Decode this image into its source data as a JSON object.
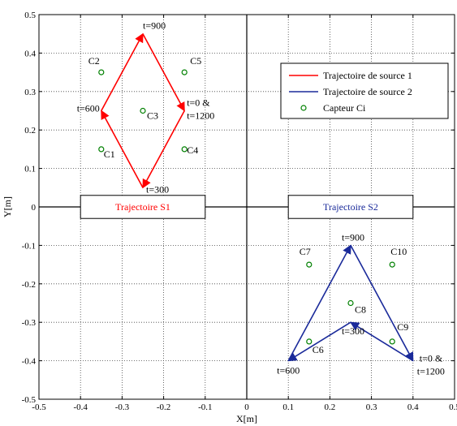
{
  "chart_data": {
    "type": "line",
    "xlabel": "X[m]",
    "ylabel": "Y[m]",
    "xlim": [
      -0.5,
      0.5
    ],
    "ylim": [
      -0.5,
      0.5
    ],
    "xticks": [
      -0.5,
      -0.4,
      -0.3,
      -0.2,
      -0.1,
      0,
      0.1,
      0.2,
      0.3,
      0.4,
      0.5
    ],
    "yticks": [
      -0.5,
      -0.4,
      -0.3,
      -0.2,
      -0.1,
      0,
      0.1,
      0.2,
      0.3,
      0.4,
      0.5
    ],
    "xtick_labels": [
      "-0.5",
      "-0.4",
      "-0.3",
      "-0.2",
      "-0.1",
      "0",
      "0.1",
      "0.2",
      "0.3",
      "0.4",
      "0.5"
    ],
    "ytick_labels": [
      "-0.5",
      "-0.4",
      "-0.3",
      "-0.2",
      "-0.1",
      "0",
      "0.1",
      "0.2",
      "0.3",
      "0.4",
      "0.5"
    ],
    "grid": true,
    "axis_lines": {
      "x": 0,
      "y": 0
    },
    "legend_position": "upper-right",
    "legend": [
      {
        "label": "Trajectoire de source 1",
        "color": "#ff0000",
        "marker": "line"
      },
      {
        "label": "Trajectoire de source 2",
        "color": "#1a2a9a",
        "marker": "line"
      },
      {
        "label": "Capteur Ci",
        "color": "#008000",
        "marker": "circle"
      }
    ],
    "series": [
      {
        "name": "Trajectoire de source 1",
        "color": "#ff0000",
        "x": [
          -0.15,
          -0.25,
          -0.35,
          -0.25,
          -0.15
        ],
        "y": [
          0.25,
          0.05,
          0.25,
          0.45,
          0.25
        ]
      },
      {
        "name": "Trajectoire de source 2",
        "color": "#1a2a9a",
        "x": [
          0.4,
          0.25,
          0.1,
          0.25,
          0.4
        ],
        "y": [
          -0.4,
          -0.3,
          -0.4,
          -0.1,
          -0.4
        ]
      }
    ],
    "sensors": {
      "name": "Capteur Ci",
      "color": "#008000",
      "points": [
        {
          "label": "C1",
          "x": -0.35,
          "y": 0.15
        },
        {
          "label": "C2",
          "x": -0.35,
          "y": 0.35
        },
        {
          "label": "C3",
          "x": -0.25,
          "y": 0.25
        },
        {
          "label": "C4",
          "x": -0.15,
          "y": 0.15
        },
        {
          "label": "C5",
          "x": -0.15,
          "y": 0.35
        },
        {
          "label": "C6",
          "x": 0.15,
          "y": -0.35
        },
        {
          "label": "C7",
          "x": 0.15,
          "y": -0.15
        },
        {
          "label": "C8",
          "x": 0.25,
          "y": -0.25
        },
        {
          "label": "C9",
          "x": 0.35,
          "y": -0.35
        },
        {
          "label": "C10",
          "x": 0.35,
          "y": -0.15
        }
      ]
    },
    "annotations": [
      {
        "text": "t=900",
        "x": -0.25,
        "y": 0.45,
        "color": "#000000"
      },
      {
        "text": "t=600",
        "x": -0.35,
        "y": 0.25,
        "color": "#000000"
      },
      {
        "text": "t=0 &",
        "x": -0.15,
        "y": 0.25,
        "color": "#000000"
      },
      {
        "text": "t=1200",
        "x": -0.15,
        "y": 0.25,
        "color": "#000000"
      },
      {
        "text": "t=300",
        "x": -0.25,
        "y": 0.05,
        "color": "#000000"
      },
      {
        "text": "t=900",
        "x": 0.25,
        "y": -0.1,
        "color": "#000000"
      },
      {
        "text": "t=300",
        "x": 0.25,
        "y": -0.3,
        "color": "#000000"
      },
      {
        "text": "t=600",
        "x": 0.1,
        "y": -0.4,
        "color": "#000000"
      },
      {
        "text": "t=0 &",
        "x": 0.4,
        "y": -0.4,
        "color": "#000000"
      },
      {
        "text": "t=1200",
        "x": 0.4,
        "y": -0.4,
        "color": "#000000"
      }
    ],
    "boxes": [
      {
        "text": "Trajectoire S1",
        "color": "#ff0000",
        "x": [
          -0.4,
          -0.1
        ],
        "y": [
          -0.03,
          0.03
        ]
      },
      {
        "text": "Trajectoire S2",
        "color": "#1a2a9a",
        "x": [
          0.1,
          0.4
        ],
        "y": [
          -0.03,
          0.03
        ]
      }
    ]
  }
}
